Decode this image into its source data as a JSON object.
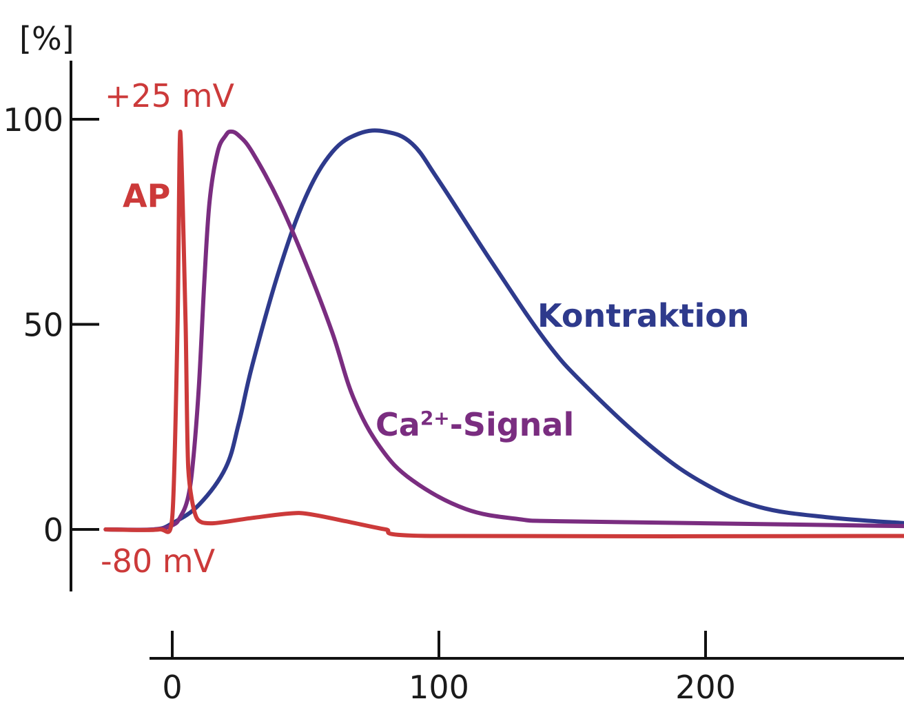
{
  "chart_data": {
    "type": "line",
    "title": "",
    "xlabel": "",
    "ylabel": "[%]",
    "xlim": [
      -25,
      275
    ],
    "ylim": [
      -15,
      115
    ],
    "xticks": [
      0,
      100,
      200
    ],
    "yticks": [
      0,
      50,
      100
    ],
    "grid": false,
    "annotations": {
      "ap_peak": "+25 mV",
      "ap_rest": "-80 mV"
    },
    "series": [
      {
        "name": "AP",
        "color": "#cc3a3a",
        "x": [
          -25,
          -5,
          0,
          2,
          3,
          5,
          6,
          9,
          15,
          30,
          48,
          65,
          80,
          97,
          275
        ],
        "y": [
          0,
          0,
          3,
          50,
          97,
          50,
          15,
          3,
          1.5,
          2.8,
          4,
          2,
          0,
          -1.6,
          -1.6
        ]
      },
      {
        "name": "Ca²⁺-Signal",
        "label_main": "Ca",
        "label_sup": "2+",
        "label_rest": "-Signal",
        "color": "#7a2d80",
        "x": [
          -25,
          -7,
          0,
          3,
          6,
          8,
          10,
          12,
          14,
          17,
          20,
          22,
          25,
          30,
          40,
          50,
          60,
          68,
          78,
          90,
          110,
          130,
          145,
          200,
          275
        ],
        "y": [
          0,
          0,
          1,
          3,
          8,
          18,
          35,
          60,
          80,
          92,
          96,
          97,
          96,
          92,
          80,
          65,
          48,
          32,
          20,
          12,
          5,
          2.5,
          2,
          1.5,
          0.8
        ]
      },
      {
        "name": "Kontraktion",
        "color": "#2e3a8c",
        "x": [
          -25,
          -7,
          0,
          10,
          20,
          25,
          30,
          40,
          50,
          60,
          70,
          80,
          90,
          100,
          120,
          140,
          155,
          180,
          200,
          220,
          245,
          275
        ],
        "y": [
          0,
          0,
          1.5,
          6,
          15,
          26,
          40,
          63,
          81,
          92,
          96.5,
          97,
          94,
          85,
          65,
          46,
          35,
          20,
          11,
          5.5,
          3,
          1.5
        ]
      }
    ]
  }
}
